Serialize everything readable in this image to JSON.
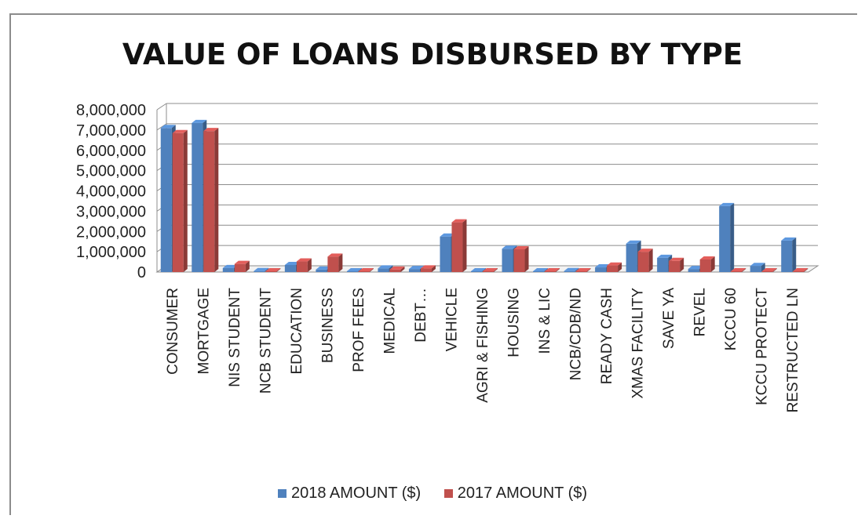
{
  "chart_data": {
    "type": "bar",
    "title": "VALUE OF LOANS DISBURSED BY TYPE",
    "xlabel": "",
    "ylabel": "",
    "ylim": [
      0,
      8000000
    ],
    "ytick_labels": [
      "0",
      "1,000,000",
      "2,000,000",
      "3,000,000",
      "4,000,000",
      "5,000,000",
      "6,000,000",
      "7,000,000",
      "8,000,000"
    ],
    "grid": true,
    "legend_position": "bottom",
    "categories": [
      "CONSUMER",
      "MORTGAGE",
      "NIS STUDENT",
      "NCB STUDENT",
      "EDUCATION",
      "BUSINESS",
      "PROF FEES",
      "MEDICAL",
      "DEBT…",
      "VEHICLE",
      "AGRI & FISHING",
      "HOUSING",
      "INS & LIC",
      "NCB/CDB/ND",
      "READY CASH",
      "XMAS FACILITY",
      "SAVE YA",
      "REVEL",
      "KCCU 60",
      "KCCU PROTECT",
      "RESTRUCTED LN"
    ],
    "series": [
      {
        "name": "2018 AMOUNT ($)",
        "color": "#4f81bd",
        "values": [
          7100000,
          7350000,
          200000,
          50000,
          350000,
          120000,
          10000,
          180000,
          150000,
          1750000,
          10000,
          1150000,
          10000,
          50000,
          230000,
          1400000,
          700000,
          150000,
          3250000,
          300000,
          1550000
        ]
      },
      {
        "name": "2017 AMOUNT ($)",
        "color": "#c0504d",
        "values": [
          6850000,
          6950000,
          400000,
          30000,
          520000,
          760000,
          10000,
          120000,
          180000,
          2450000,
          10000,
          1120000,
          10000,
          20000,
          320000,
          1000000,
          550000,
          620000,
          20000,
          30000,
          20000
        ]
      }
    ]
  }
}
